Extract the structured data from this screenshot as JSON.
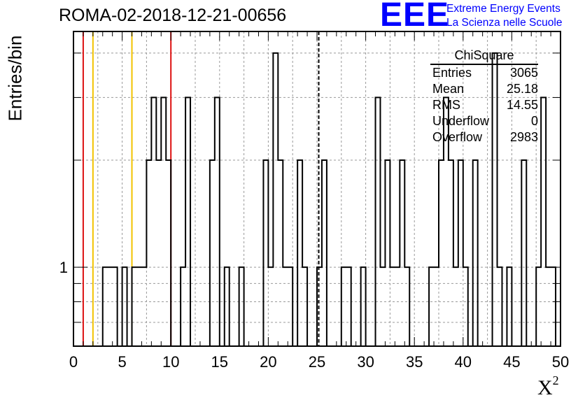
{
  "title": "ROMA-02-2018-12-21-00656",
  "logo": {
    "mark": "EEE",
    "line1": "Extreme Energy Events",
    "line2": "La Scienza nelle Scuole"
  },
  "stats_box": {
    "name": "ChiSquare",
    "rows": [
      {
        "label": "Entries",
        "value": "3065"
      },
      {
        "label": "Mean",
        "value": "25.18"
      },
      {
        "label": "RMS",
        "value": "14.55"
      },
      {
        "label": "Underflow",
        "value": "0"
      },
      {
        "label": "Overflow",
        "value": "2983"
      }
    ]
  },
  "colors": {
    "red_line": "#dd1111",
    "orange_line": "#f2c300",
    "histogram": "#000000",
    "grid": "#999999",
    "logo": "#0000ff"
  },
  "chart_data": {
    "type": "bar",
    "title": "ROMA-02-2018-12-21-00656",
    "xlabel": "X",
    "xlabel_superscript": "2",
    "ylabel": "Entries/bin",
    "xlim": [
      0,
      50
    ],
    "ylim": [
      0.6,
      4.6
    ],
    "log_y": true,
    "grid": true,
    "bin_width": 0.5,
    "x_ticks": [
      0,
      5,
      10,
      15,
      20,
      25,
      30,
      35,
      40,
      45,
      50
    ],
    "y_ticks": [
      1
    ],
    "vertical_lines": [
      {
        "x": 1,
        "color": "red",
        "style": "solid"
      },
      {
        "x": 2,
        "color": "orange",
        "style": "solid"
      },
      {
        "x": 6,
        "color": "orange",
        "style": "solid"
      },
      {
        "x": 10,
        "color": "red",
        "style": "solid"
      },
      {
        "x": 25.18,
        "color": "black",
        "style": "dashed"
      }
    ],
    "bins": [
      {
        "x": 3.0,
        "y": 1
      },
      {
        "x": 3.5,
        "y": 1
      },
      {
        "x": 4.0,
        "y": 1
      },
      {
        "x": 5.0,
        "y": 1
      },
      {
        "x": 6.0,
        "y": 1
      },
      {
        "x": 6.5,
        "y": 1
      },
      {
        "x": 7.0,
        "y": 1
      },
      {
        "x": 7.5,
        "y": 2
      },
      {
        "x": 8.0,
        "y": 3
      },
      {
        "x": 8.5,
        "y": 2
      },
      {
        "x": 9.0,
        "y": 3
      },
      {
        "x": 9.5,
        "y": 2
      },
      {
        "x": 11.0,
        "y": 1
      },
      {
        "x": 11.5,
        "y": 3
      },
      {
        "x": 14.0,
        "y": 2
      },
      {
        "x": 14.5,
        "y": 3
      },
      {
        "x": 15.5,
        "y": 1
      },
      {
        "x": 17.0,
        "y": 1
      },
      {
        "x": 19.5,
        "y": 2
      },
      {
        "x": 20.0,
        "y": 1
      },
      {
        "x": 20.5,
        "y": 4
      },
      {
        "x": 21.0,
        "y": 2
      },
      {
        "x": 21.5,
        "y": 1
      },
      {
        "x": 22.0,
        "y": 1
      },
      {
        "x": 23.0,
        "y": 2
      },
      {
        "x": 23.5,
        "y": 1
      },
      {
        "x": 25.0,
        "y": 1
      },
      {
        "x": 25.5,
        "y": 2
      },
      {
        "x": 27.5,
        "y": 1
      },
      {
        "x": 28.0,
        "y": 1
      },
      {
        "x": 29.5,
        "y": 1
      },
      {
        "x": 31.0,
        "y": 3
      },
      {
        "x": 31.5,
        "y": 1
      },
      {
        "x": 32.0,
        "y": 2
      },
      {
        "x": 32.5,
        "y": 1
      },
      {
        "x": 33.0,
        "y": 1
      },
      {
        "x": 33.5,
        "y": 2
      },
      {
        "x": 34.0,
        "y": 1
      },
      {
        "x": 36.5,
        "y": 1
      },
      {
        "x": 37.0,
        "y": 1
      },
      {
        "x": 37.5,
        "y": 2
      },
      {
        "x": 38.0,
        "y": 3
      },
      {
        "x": 38.5,
        "y": 2
      },
      {
        "x": 39.0,
        "y": 1
      },
      {
        "x": 39.5,
        "y": 2
      },
      {
        "x": 40.0,
        "y": 1
      },
      {
        "x": 41.0,
        "y": 2
      },
      {
        "x": 43.0,
        "y": 4
      },
      {
        "x": 43.5,
        "y": 1
      },
      {
        "x": 44.5,
        "y": 1
      },
      {
        "x": 46.0,
        "y": 2
      },
      {
        "x": 47.5,
        "y": 1
      },
      {
        "x": 48.0,
        "y": 3
      },
      {
        "x": 48.5,
        "y": 1
      },
      {
        "x": 49.0,
        "y": 1
      }
    ]
  }
}
